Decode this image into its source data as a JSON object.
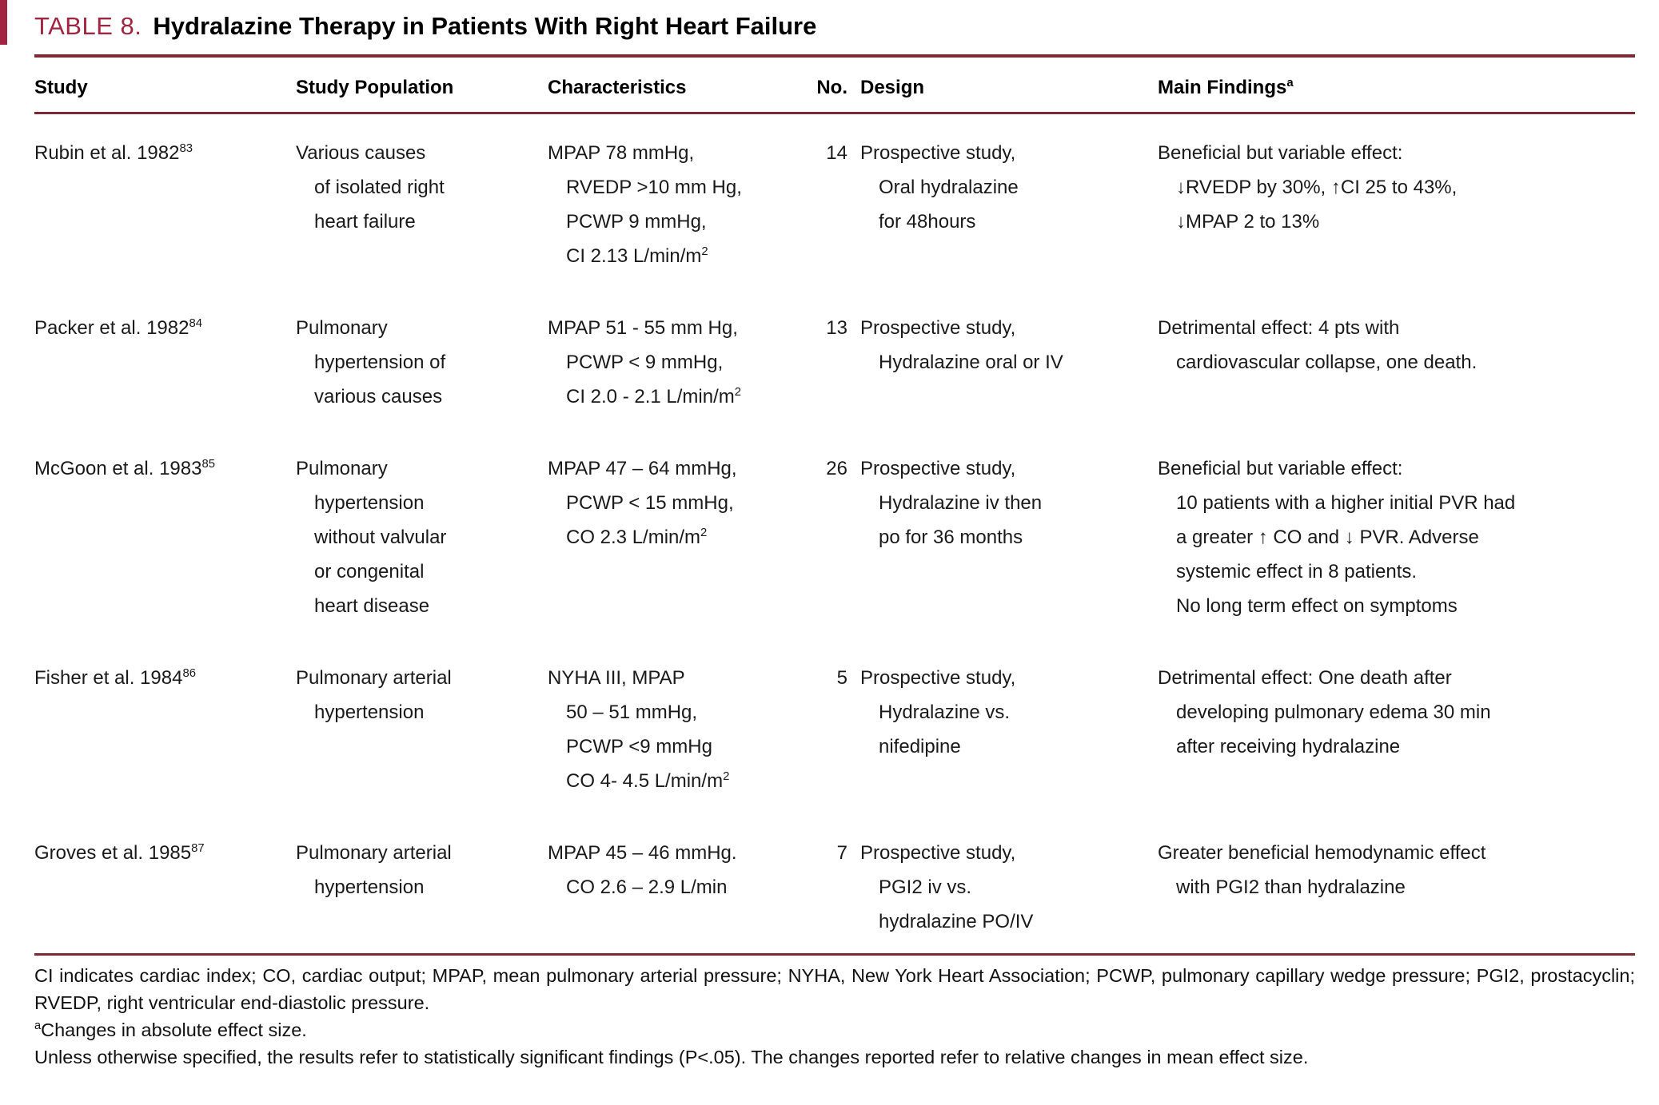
{
  "colors": {
    "accent": "#a12441",
    "rule": "#7e2a36"
  },
  "title": {
    "label": "TABLE 8.",
    "text": "Hydralazine Therapy in Patients With Right Heart Failure"
  },
  "table": {
    "headers": [
      "Study",
      "Study Population",
      "Characteristics",
      "No.",
      "Design",
      "Main Findings^{a}"
    ],
    "rows": [
      {
        "study": "Rubin et al. 1982^{83}",
        "population": [
          "Various causes",
          "of isolated right",
          "heart failure"
        ],
        "characteristics": [
          "MPAP 78 mmHg,",
          "RVEDP >10 mm Hg,",
          "PCWP 9 mmHg,",
          "CI 2.13 L/min/m^{2}"
        ],
        "no": "14",
        "design": [
          "Prospective study,",
          "Oral hydralazine",
          "for 48hours"
        ],
        "findings": [
          "Beneficial but variable effect:",
          "↓RVEDP by 30%, ↑CI 25 to 43%,",
          "↓MPAP 2 to 13%"
        ]
      },
      {
        "study": "Packer et al. 1982^{84}",
        "population": [
          "Pulmonary",
          "hypertension of",
          "various causes"
        ],
        "characteristics": [
          "MPAP 51 - 55 mm Hg,",
          "PCWP < 9 mmHg,",
          "CI 2.0 - 2.1 L/min/m^{2}"
        ],
        "no": "13",
        "design": [
          "Prospective study,",
          "Hydralazine oral or IV"
        ],
        "findings": [
          "Detrimental effect: 4 pts with",
          "cardiovascular collapse, one death."
        ]
      },
      {
        "study": "McGoon et al. 1983^{85}",
        "population": [
          "Pulmonary",
          "hypertension",
          "without valvular",
          "or congenital",
          "heart disease"
        ],
        "characteristics": [
          "MPAP 47 – 64 mmHg,",
          "PCWP < 15 mmHg,",
          "CO 2.3 L/min/m^{2}"
        ],
        "no": "26",
        "design": [
          "Prospective study,",
          "Hydralazine iv then",
          "po for 36 months"
        ],
        "findings": [
          "Beneficial but variable effect:",
          "10 patients with a higher initial PVR had",
          "a greater ↑ CO and ↓ PVR. Adverse",
          "systemic effect in 8 patients.",
          "No long term effect on symptoms"
        ]
      },
      {
        "study": "Fisher et al. 1984^{86}",
        "population": [
          "Pulmonary arterial",
          "hypertension"
        ],
        "characteristics": [
          "NYHA III, MPAP",
          "50 – 51 mmHg,",
          "PCWP <9 mmHg",
          "CO 4- 4.5 L/min/m^{2}"
        ],
        "no": "5",
        "design": [
          "Prospective study,",
          "Hydralazine vs.",
          "nifedipine"
        ],
        "findings": [
          "Detrimental effect: One death after",
          "developing pulmonary edema 30 min",
          "after receiving hydralazine"
        ]
      },
      {
        "study": "Groves et al. 1985^{87}",
        "population": [
          "Pulmonary arterial",
          "hypertension"
        ],
        "characteristics": [
          "MPAP 45 – 46 mmHg.",
          "CO 2.6 – 2.9 L/min"
        ],
        "no": "7",
        "design": [
          "Prospective study,",
          "PGI2 iv vs.",
          "hydralazine PO/IV"
        ],
        "findings": [
          "Greater beneficial hemodynamic effect",
          "with PGI2 than hydralazine"
        ]
      }
    ]
  },
  "footnotes": [
    "CI indicates cardiac index; CO, cardiac output; MPAP, mean pulmonary arterial pressure; NYHA, New York Heart Association; PCWP, pulmonary capillary wedge pressure; PGI2, prostacyclin; RVEDP, right ventricular end-diastolic pressure.",
    "^{a}Changes in absolute effect size.",
    "Unless otherwise specified, the results refer to statistically significant findings (P<.05). The changes reported refer to relative changes in mean effect size."
  ]
}
